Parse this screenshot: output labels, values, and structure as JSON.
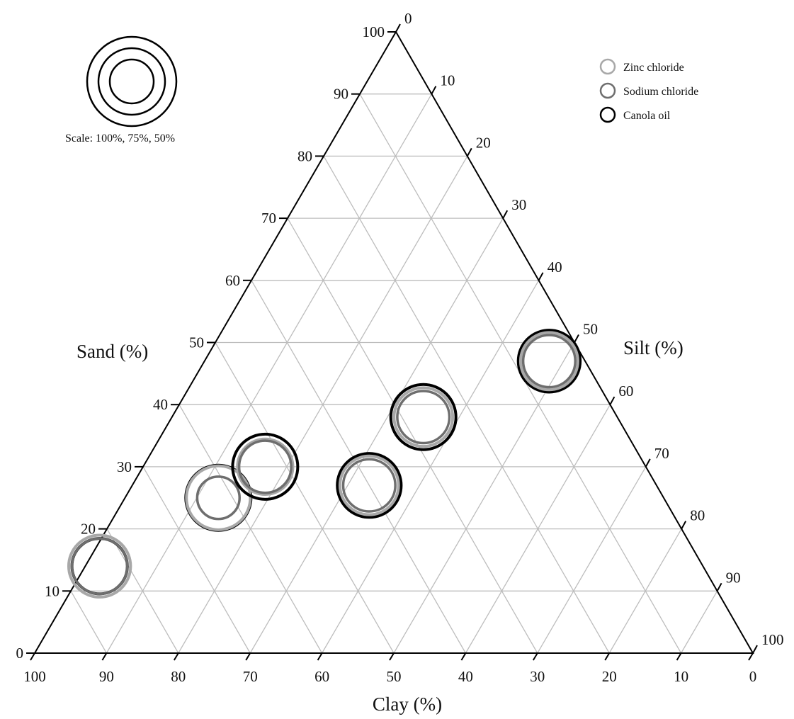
{
  "chart_data": {
    "type": "scatter",
    "subtype": "ternary",
    "grid": true,
    "axes": {
      "sand": {
        "label": "Sand (%)",
        "ticks": [
          "0",
          "10",
          "20",
          "30",
          "40",
          "50",
          "60",
          "70",
          "80",
          "90",
          "100"
        ]
      },
      "silt": {
        "label": "Silt (%)",
        "ticks": [
          "0",
          "10",
          "20",
          "30",
          "40",
          "50",
          "60",
          "70",
          "80",
          "90",
          "100"
        ]
      },
      "clay": {
        "label": "Clay (%)",
        "ticks": [
          "100",
          "90",
          "80",
          "70",
          "60",
          "50",
          "40",
          "30",
          "20",
          "10",
          "0"
        ]
      }
    },
    "size_scale": {
      "label": "Scale: 100%, 75%, 50%",
      "values": [
        100,
        75,
        50
      ]
    },
    "legend": {
      "position": "top-right",
      "entries": [
        {
          "name": "Zinc chloride",
          "color": "#a8a8a8"
        },
        {
          "name": "Sodium chloride",
          "color": "#6e6e6e"
        },
        {
          "name": "Canola oil",
          "color": "#000000"
        }
      ]
    },
    "points": [
      {
        "sand": 14,
        "clay": 84,
        "zinc": 95,
        "sodium": 85,
        "canola": 85
      },
      {
        "sand": 25,
        "clay": 62,
        "zinc": 98,
        "sodium": 65,
        "canola": 100
      },
      {
        "sand": 30,
        "clay": 53,
        "zinc": 85,
        "sodium": 80,
        "canola": 100
      },
      {
        "sand": 27,
        "clay": 40,
        "zinc": 90,
        "sodium": 80,
        "canola": 98
      },
      {
        "sand": 38,
        "clay": 27,
        "zinc": 90,
        "sodium": 80,
        "canola": 100
      },
      {
        "sand": 47,
        "clay": 5,
        "zinc": 88,
        "sodium": 80,
        "canola": 95
      }
    ]
  }
}
